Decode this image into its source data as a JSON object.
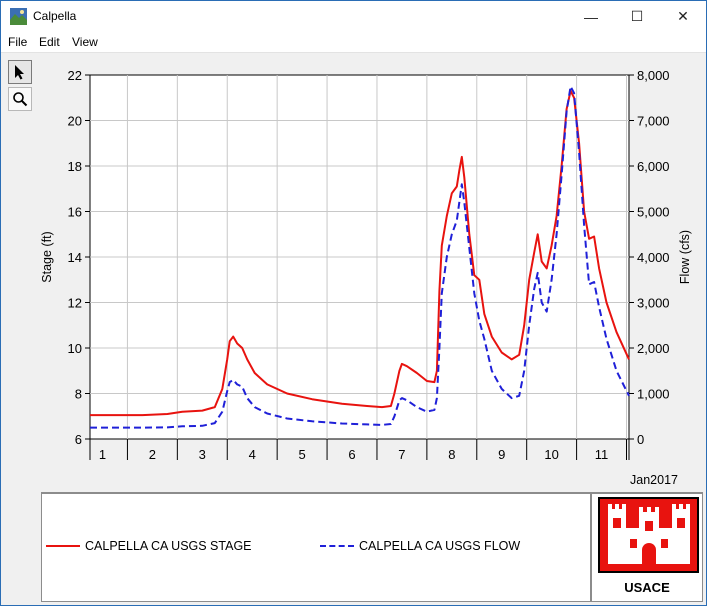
{
  "window": {
    "title": "Calpella",
    "controls": {
      "minimize": "—",
      "maximize": "☐",
      "close": "✕"
    }
  },
  "menu": {
    "items": [
      "File",
      "Edit",
      "View"
    ]
  },
  "toolbar": {
    "tools": [
      "pointer-icon",
      "zoom-icon"
    ]
  },
  "chart_data": {
    "type": "line",
    "xlabel": "Jan2017",
    "x_ticks": [
      "1",
      "2",
      "3",
      "4",
      "5",
      "6",
      "7",
      "8",
      "9",
      "10",
      "11"
    ],
    "xlim": [
      0.75,
      11.55
    ],
    "left_axis": {
      "label": "Stage (ft)",
      "lim": [
        6,
        22
      ],
      "ticks": [
        "6",
        "8",
        "10",
        "12",
        "14",
        "16",
        "18",
        "20",
        "22"
      ]
    },
    "right_axis": {
      "label": "Flow (cfs)",
      "lim": [
        0,
        8000
      ],
      "ticks": [
        "0",
        "1,000",
        "2,000",
        "3,000",
        "4,000",
        "5,000",
        "6,000",
        "7,000",
        "8,000"
      ]
    },
    "grid": true,
    "legend_placement": "bottom",
    "series": [
      {
        "name": "CALPELLA CA USGS STAGE",
        "axis": "left",
        "color": "#e8130f",
        "style": "solid",
        "points": [
          [
            0.75,
            7.05
          ],
          [
            1.3,
            7.05
          ],
          [
            1.8,
            7.05
          ],
          [
            2.3,
            7.1
          ],
          [
            2.6,
            7.2
          ],
          [
            3.0,
            7.25
          ],
          [
            3.25,
            7.4
          ],
          [
            3.4,
            8.2
          ],
          [
            3.5,
            9.5
          ],
          [
            3.55,
            10.3
          ],
          [
            3.62,
            10.5
          ],
          [
            3.7,
            10.2
          ],
          [
            3.8,
            10.0
          ],
          [
            3.9,
            9.5
          ],
          [
            4.05,
            8.9
          ],
          [
            4.3,
            8.4
          ],
          [
            4.7,
            8.0
          ],
          [
            5.2,
            7.75
          ],
          [
            5.8,
            7.55
          ],
          [
            6.3,
            7.45
          ],
          [
            6.6,
            7.4
          ],
          [
            6.78,
            7.45
          ],
          [
            6.85,
            8.0
          ],
          [
            6.95,
            9.0
          ],
          [
            7.0,
            9.3
          ],
          [
            7.1,
            9.2
          ],
          [
            7.3,
            8.9
          ],
          [
            7.5,
            8.55
          ],
          [
            7.65,
            8.5
          ],
          [
            7.7,
            9.0
          ],
          [
            7.75,
            12.5
          ],
          [
            7.8,
            14.5
          ],
          [
            7.9,
            15.8
          ],
          [
            8.0,
            16.8
          ],
          [
            8.1,
            17.1
          ],
          [
            8.15,
            17.8
          ],
          [
            8.2,
            18.4
          ],
          [
            8.25,
            17.5
          ],
          [
            8.35,
            15.0
          ],
          [
            8.45,
            13.2
          ],
          [
            8.55,
            13.0
          ],
          [
            8.65,
            11.5
          ],
          [
            8.8,
            10.5
          ],
          [
            9.0,
            9.8
          ],
          [
            9.2,
            9.5
          ],
          [
            9.35,
            9.7
          ],
          [
            9.45,
            11.0
          ],
          [
            9.55,
            13.0
          ],
          [
            9.65,
            14.2
          ],
          [
            9.72,
            15.0
          ],
          [
            9.8,
            13.8
          ],
          [
            9.9,
            13.5
          ],
          [
            10.0,
            14.5
          ],
          [
            10.1,
            15.8
          ],
          [
            10.2,
            18.0
          ],
          [
            10.3,
            20.5
          ],
          [
            10.38,
            21.3
          ],
          [
            10.45,
            21.0
          ],
          [
            10.55,
            19.0
          ],
          [
            10.65,
            16.0
          ],
          [
            10.75,
            14.8
          ],
          [
            10.85,
            14.9
          ],
          [
            10.95,
            13.5
          ],
          [
            11.1,
            12.0
          ],
          [
            11.3,
            10.7
          ],
          [
            11.55,
            9.5
          ]
        ]
      },
      {
        "name": "CALPELLA CA USGS FLOW",
        "axis": "right",
        "color": "#1f20d8",
        "style": "dashed",
        "points": [
          [
            0.75,
            250
          ],
          [
            1.3,
            250
          ],
          [
            1.8,
            250
          ],
          [
            2.3,
            255
          ],
          [
            2.6,
            280
          ],
          [
            3.0,
            290
          ],
          [
            3.25,
            350
          ],
          [
            3.4,
            600
          ],
          [
            3.5,
            1050
          ],
          [
            3.55,
            1250
          ],
          [
            3.62,
            1300
          ],
          [
            3.7,
            1200
          ],
          [
            3.8,
            1150
          ],
          [
            3.9,
            900
          ],
          [
            4.05,
            700
          ],
          [
            4.3,
            560
          ],
          [
            4.7,
            450
          ],
          [
            5.2,
            390
          ],
          [
            5.8,
            340
          ],
          [
            6.3,
            320
          ],
          [
            6.6,
            310
          ],
          [
            6.78,
            330
          ],
          [
            6.85,
            500
          ],
          [
            6.95,
            850
          ],
          [
            7.0,
            900
          ],
          [
            7.1,
            850
          ],
          [
            7.3,
            700
          ],
          [
            7.5,
            600
          ],
          [
            7.65,
            640
          ],
          [
            7.7,
            900
          ],
          [
            7.75,
            2000
          ],
          [
            7.8,
            3200
          ],
          [
            7.9,
            4000
          ],
          [
            8.0,
            4500
          ],
          [
            8.1,
            4800
          ],
          [
            8.15,
            5200
          ],
          [
            8.2,
            5600
          ],
          [
            8.25,
            5200
          ],
          [
            8.35,
            4200
          ],
          [
            8.45,
            3200
          ],
          [
            8.55,
            2600
          ],
          [
            8.65,
            2200
          ],
          [
            8.8,
            1500
          ],
          [
            9.0,
            1100
          ],
          [
            9.2,
            900
          ],
          [
            9.35,
            950
          ],
          [
            9.45,
            1500
          ],
          [
            9.55,
            2500
          ],
          [
            9.65,
            3300
          ],
          [
            9.72,
            3650
          ],
          [
            9.8,
            3000
          ],
          [
            9.9,
            2800
          ],
          [
            10.0,
            3500
          ],
          [
            10.1,
            4500
          ],
          [
            10.2,
            5800
          ],
          [
            10.3,
            7200
          ],
          [
            10.38,
            7750
          ],
          [
            10.45,
            7600
          ],
          [
            10.55,
            6300
          ],
          [
            10.65,
            4700
          ],
          [
            10.75,
            3400
          ],
          [
            10.85,
            3450
          ],
          [
            10.95,
            2900
          ],
          [
            11.1,
            2200
          ],
          [
            11.3,
            1500
          ],
          [
            11.55,
            950
          ]
        ]
      }
    ]
  },
  "legend": {
    "stage_label": "CALPELLA CA USGS STAGE",
    "flow_label": "CALPELLA CA USGS FLOW"
  },
  "logo": {
    "text": "USACE",
    "accent": "#e8130f"
  }
}
